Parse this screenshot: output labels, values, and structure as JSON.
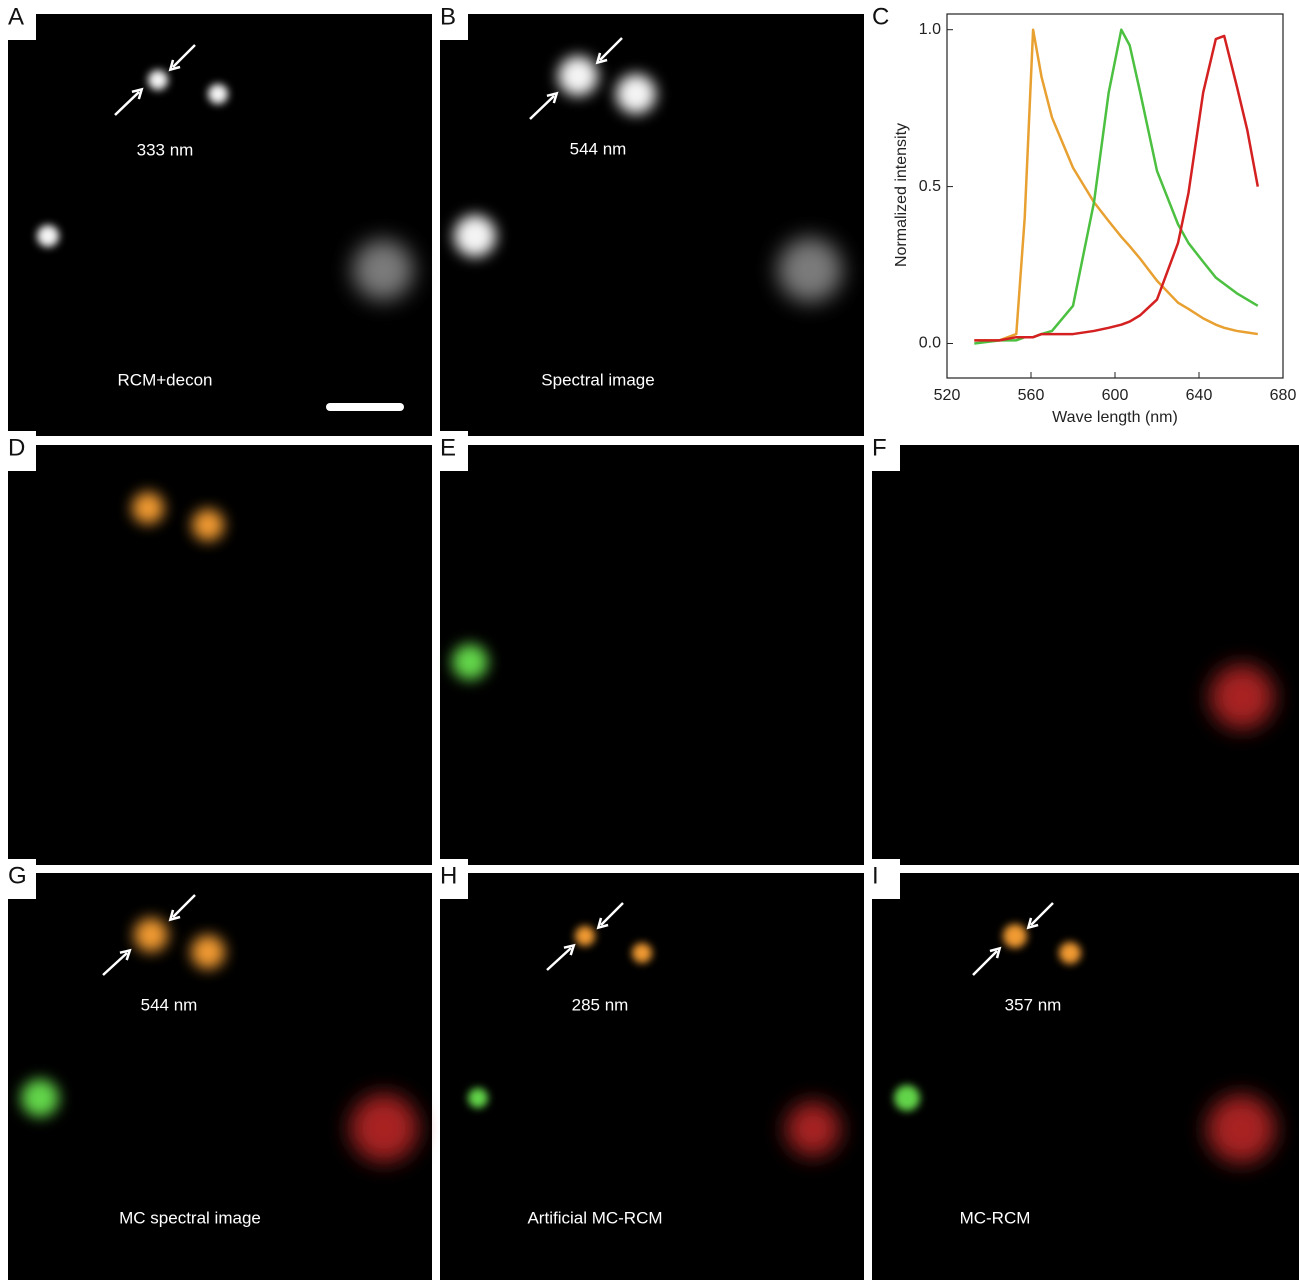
{
  "panels": [
    {
      "letter": "A",
      "labels": [
        "333 nm",
        "RCM+decon"
      ]
    },
    {
      "letter": "B",
      "labels": [
        "544 nm",
        "Spectral image"
      ]
    },
    {
      "letter": "C"
    },
    {
      "letter": "D"
    },
    {
      "letter": "E"
    },
    {
      "letter": "F"
    },
    {
      "letter": "G",
      "labels": [
        "544 nm",
        "MC spectral image"
      ]
    },
    {
      "letter": "H",
      "labels": [
        "285 nm",
        "Artificial MC-RCM"
      ]
    },
    {
      "letter": "I",
      "labels": [
        "357 nm",
        "MC-RCM"
      ]
    }
  ],
  "chart_data": {
    "type": "line",
    "x_label": "Wave length (nm)",
    "y_label": "Normalized intensity",
    "x": [
      533,
      545,
      553,
      557,
      561,
      565,
      570,
      580,
      590,
      597,
      603,
      607,
      612,
      620,
      630,
      635,
      642,
      648,
      652,
      658,
      663,
      668
    ],
    "series": [
      {
        "color": "#e8a030",
        "values": [
          0.01,
          0.01,
          0.03,
          0.4,
          1.0,
          0.85,
          0.72,
          0.56,
          0.45,
          0.39,
          0.34,
          0.31,
          0.27,
          0.2,
          0.13,
          0.11,
          0.08,
          0.06,
          0.05,
          0.04,
          0.035,
          0.03
        ]
      },
      {
        "color": "#4cc040",
        "values": [
          0,
          0.01,
          0.01,
          0.02,
          0.02,
          0.03,
          0.04,
          0.12,
          0.45,
          0.8,
          1.0,
          0.95,
          0.8,
          0.55,
          0.38,
          0.32,
          0.26,
          0.21,
          0.19,
          0.16,
          0.14,
          0.12
        ]
      },
      {
        "color": "#d42020",
        "values": [
          0.01,
          0.01,
          0.02,
          0.02,
          0.02,
          0.03,
          0.03,
          0.03,
          0.04,
          0.05,
          0.06,
          0.07,
          0.09,
          0.14,
          0.32,
          0.48,
          0.8,
          0.97,
          0.98,
          0.82,
          0.68,
          0.5
        ]
      }
    ],
    "xlim": [
      520,
      680
    ],
    "xticks": [
      520,
      560,
      600,
      640,
      680
    ],
    "ylim": [
      -0.11,
      1.05
    ],
    "yticks": [
      {
        "value": 0,
        "label": "0.0"
      },
      0.5,
      {
        "value": 1,
        "label": "1.0"
      }
    ]
  }
}
